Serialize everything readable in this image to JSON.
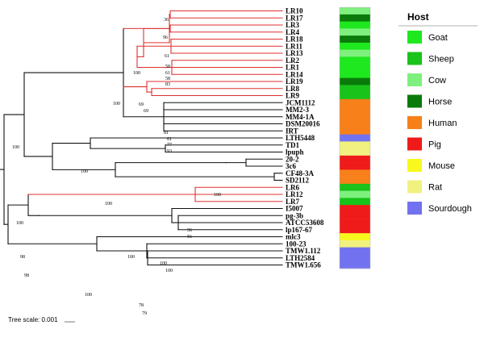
{
  "legend": {
    "title": "Host",
    "entries": [
      {
        "label": "Goat",
        "color": "#1ee81e"
      },
      {
        "label": "Sheep",
        "color": "#19c319"
      },
      {
        "label": "Cow",
        "color": "#7ef07e"
      },
      {
        "label": "Horse",
        "color": "#0a7a0a"
      },
      {
        "label": "Human",
        "color": "#f7801a"
      },
      {
        "label": "Pig",
        "color": "#ef1b1b"
      },
      {
        "label": "Mouse",
        "color": "#f8f81f"
      },
      {
        "label": "Rat",
        "color": "#f1f180"
      },
      {
        "label": "Sourdough",
        "color": "#7272f0"
      }
    ]
  },
  "strains": [
    {
      "name": "LR10",
      "host": "Cow"
    },
    {
      "name": "LR17",
      "host": "Horse"
    },
    {
      "name": "LR3",
      "host": "Goat"
    },
    {
      "name": "LR4",
      "host": "Cow"
    },
    {
      "name": "LR18",
      "host": "Horse"
    },
    {
      "name": "LR11",
      "host": "Goat"
    },
    {
      "name": "LR13",
      "host": "Cow"
    },
    {
      "name": "LR2",
      "host": "Goat"
    },
    {
      "name": "LR1",
      "host": "Goat"
    },
    {
      "name": "LR14",
      "host": "Goat"
    },
    {
      "name": "LR19",
      "host": "Horse"
    },
    {
      "name": "LR8",
      "host": "Sheep"
    },
    {
      "name": "LR9",
      "host": "Sheep"
    },
    {
      "name": "JCM1112",
      "host": "Human"
    },
    {
      "name": "MM2-3",
      "host": "Human"
    },
    {
      "name": "MM4-1A",
      "host": "Human"
    },
    {
      "name": "DSM20016",
      "host": "Human"
    },
    {
      "name": "IRT",
      "host": "Human"
    },
    {
      "name": "LTH5448",
      "host": "Sourdough"
    },
    {
      "name": "TD1",
      "host": "Rat"
    },
    {
      "name": "lpuph",
      "host": "Rat"
    },
    {
      "name": "20-2",
      "host": "Pig"
    },
    {
      "name": "3c6",
      "host": "Pig"
    },
    {
      "name": "CF48-3A",
      "host": "Human"
    },
    {
      "name": "SD2112",
      "host": "Human"
    },
    {
      "name": "LR6",
      "host": "Sheep"
    },
    {
      "name": "LR12",
      "host": "Cow"
    },
    {
      "name": "LR7",
      "host": "Sheep"
    },
    {
      "name": "I5007",
      "host": "Pig"
    },
    {
      "name": "pg-3b",
      "host": "Pig"
    },
    {
      "name": "ATCC53608",
      "host": "Pig"
    },
    {
      "name": "lp167-67",
      "host": "Pig"
    },
    {
      "name": "mlc3",
      "host": "Mouse"
    },
    {
      "name": "100-23",
      "host": "Rat"
    },
    {
      "name": "TMW1.112",
      "host": "Sourdough"
    },
    {
      "name": "LTH2584",
      "host": "Sourdough"
    },
    {
      "name": "TMW1.656",
      "host": "Sourdough"
    }
  ],
  "bootstrap_values": [
    "36",
    "96",
    "61",
    "58",
    "61",
    "58",
    "83",
    "100",
    "69",
    "69",
    "100",
    "81",
    "61",
    "77",
    "93",
    "100",
    "100",
    "100",
    "100",
    "100",
    "56",
    "56",
    "98",
    "100",
    "100",
    "100",
    "98",
    "100",
    "78",
    "79"
  ],
  "scale": {
    "label": "Tree scale: 0.001"
  },
  "branch_colors": {
    "highlight": "#e03030",
    "default": "#111111"
  }
}
